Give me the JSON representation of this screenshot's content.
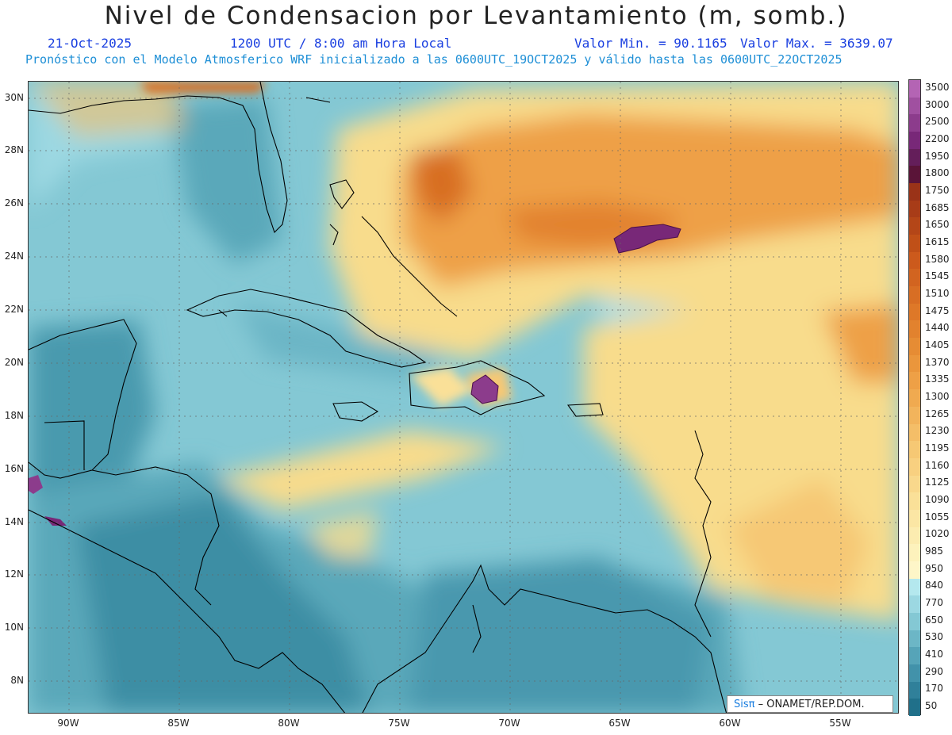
{
  "title": "Nivel de Condensacion por Levantamiento (m, somb.)",
  "date": "21-Oct-2025",
  "time": "1200 UTC / 8:00 am Hora Local",
  "valmin": "Valor Min. = 90.1165",
  "valmax": "Valor Max. = 3639.07",
  "forecast": "Pronóstico con el Modelo Atmosferico WRF inicializado a las 0600UTC_19OCT2025 y válido hasta las  0600UTC_22OCT2025",
  "lat_labels": [
    "30N",
    "28N",
    "26N",
    "24N",
    "22N",
    "20N",
    "18N",
    "16N",
    "14N",
    "12N",
    "10N",
    "8N"
  ],
  "lon_labels": [
    "90W",
    "85W",
    "80W",
    "75W",
    "70W",
    "65W",
    "60W",
    "55W"
  ],
  "colorbar": {
    "levels": [
      "3500",
      "3000",
      "2500",
      "2200",
      "1950",
      "1800",
      "1750",
      "1685",
      "1650",
      "1615",
      "1580",
      "1545",
      "1510",
      "1475",
      "1440",
      "1405",
      "1370",
      "1335",
      "1300",
      "1265",
      "1230",
      "1195",
      "1160",
      "1125",
      "1090",
      "1055",
      "1020",
      "985",
      "950",
      "840",
      "770",
      "650",
      "530",
      "410",
      "290",
      "170",
      "50"
    ],
    "colors": [
      "#b464b4",
      "#a050a0",
      "#8c3c8c",
      "#782878",
      "#641e5a",
      "#5a1438",
      "#9a3318",
      "#a83c18",
      "#b44618",
      "#c05018",
      "#cc5a1c",
      "#d26420",
      "#d86e24",
      "#de7828",
      "#e2822e",
      "#e68c34",
      "#ea963c",
      "#eea046",
      "#f0aa50",
      "#f2b45c",
      "#f4be68",
      "#f6c874",
      "#f8d080",
      "#f9d88c",
      "#fae098",
      "#fbe6a4",
      "#fcecb0",
      "#fdf2bc",
      "#fef6c8",
      "#b4e8ee",
      "#9cd8e2",
      "#84c8d4",
      "#6cb6c6",
      "#56a4b8",
      "#4292aa",
      "#30809a",
      "#20708a"
    ]
  },
  "credit_prefix": "Sisπ",
  "credit_suffix": "– ONAMET/REP.DOM."
}
